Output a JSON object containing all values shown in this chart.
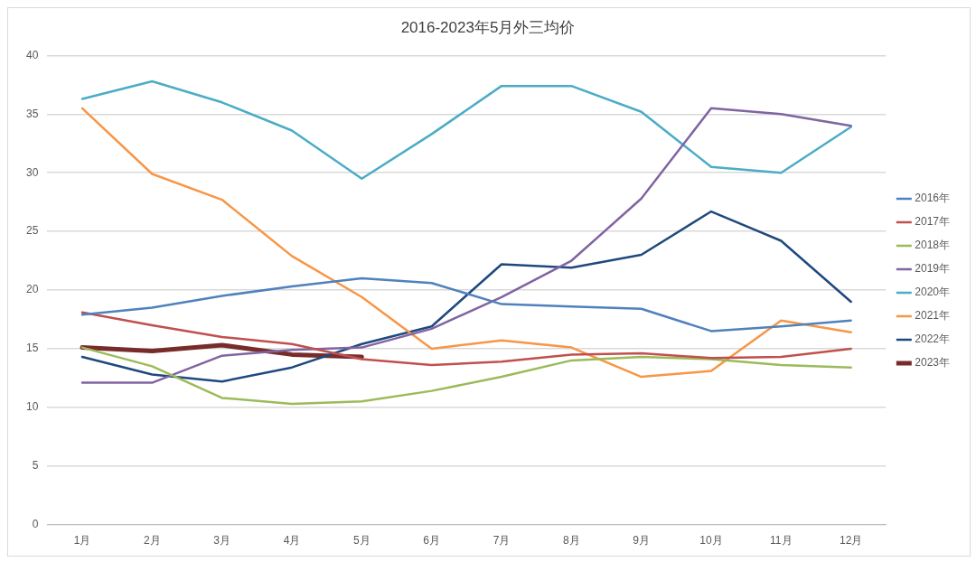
{
  "chart_data": {
    "type": "line",
    "title": "2016-2023年5月外三均价",
    "categories": [
      "1月",
      "2月",
      "3月",
      "4月",
      "5月",
      "6月",
      "7月",
      "8月",
      "9月",
      "10月",
      "11月",
      "12月"
    ],
    "series": [
      {
        "name": "2016年",
        "color": "#4f81bd",
        "values": [
          17.9,
          18.5,
          19.5,
          20.3,
          21.0,
          20.6,
          18.8,
          18.6,
          18.4,
          16.5,
          16.9,
          17.4
        ]
      },
      {
        "name": "2017年",
        "color": "#c0504d",
        "values": [
          18.1,
          17.0,
          16.0,
          15.4,
          14.1,
          13.6,
          13.9,
          14.5,
          14.6,
          14.2,
          14.3,
          15.0
        ]
      },
      {
        "name": "2018年",
        "color": "#9bbb59",
        "values": [
          15.1,
          13.5,
          10.8,
          10.3,
          10.5,
          11.4,
          12.6,
          14.0,
          14.3,
          14.1,
          13.6,
          13.4
        ]
      },
      {
        "name": "2019年",
        "color": "#8064a2",
        "values": [
          12.1,
          12.1,
          14.4,
          14.9,
          15.1,
          16.7,
          19.4,
          22.5,
          27.8,
          35.5,
          35.0,
          34.0
        ]
      },
      {
        "name": "2020年",
        "color": "#4bacc6",
        "values": [
          36.3,
          37.8,
          36.0,
          33.6,
          29.5,
          33.3,
          37.4,
          37.4,
          35.2,
          30.5,
          30.0,
          33.9
        ]
      },
      {
        "name": "2021年",
        "color": "#f79646",
        "values": [
          35.5,
          29.9,
          27.7,
          22.9,
          19.4,
          15.0,
          15.7,
          15.1,
          12.6,
          13.1,
          17.4,
          16.4
        ]
      },
      {
        "name": "2022年",
        "color": "#1f497d",
        "values": [
          14.3,
          12.8,
          12.2,
          13.4,
          15.4,
          16.9,
          22.2,
          21.9,
          23.0,
          26.7,
          24.2,
          19.0
        ]
      },
      {
        "name": "2023年",
        "color": "#772c2a",
        "values": [
          15.1,
          14.8,
          15.3,
          14.5,
          14.3,
          null,
          null,
          null,
          null,
          null,
          null,
          null
        ]
      }
    ],
    "ylim": [
      0,
      40
    ],
    "yticks": [
      0,
      5,
      10,
      15,
      20,
      25,
      30,
      35,
      40
    ],
    "grid": "y",
    "legend": "right",
    "marker": "none",
    "line_style": "solid"
  }
}
